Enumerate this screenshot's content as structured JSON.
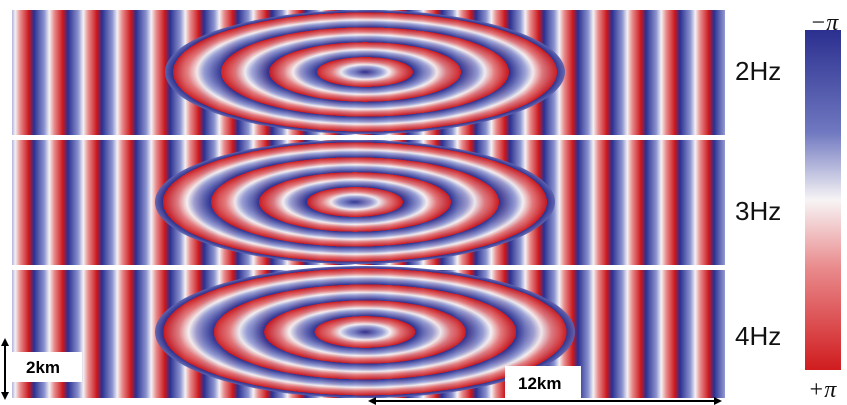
{
  "panels": [
    {
      "label": "2Hz"
    },
    {
      "label": "3Hz"
    },
    {
      "label": "4Hz"
    }
  ],
  "colorbar": {
    "top_label": "−π",
    "bottom_label": "+π"
  },
  "scale_bars": {
    "vertical": "2km",
    "horizontal": "12km"
  }
}
